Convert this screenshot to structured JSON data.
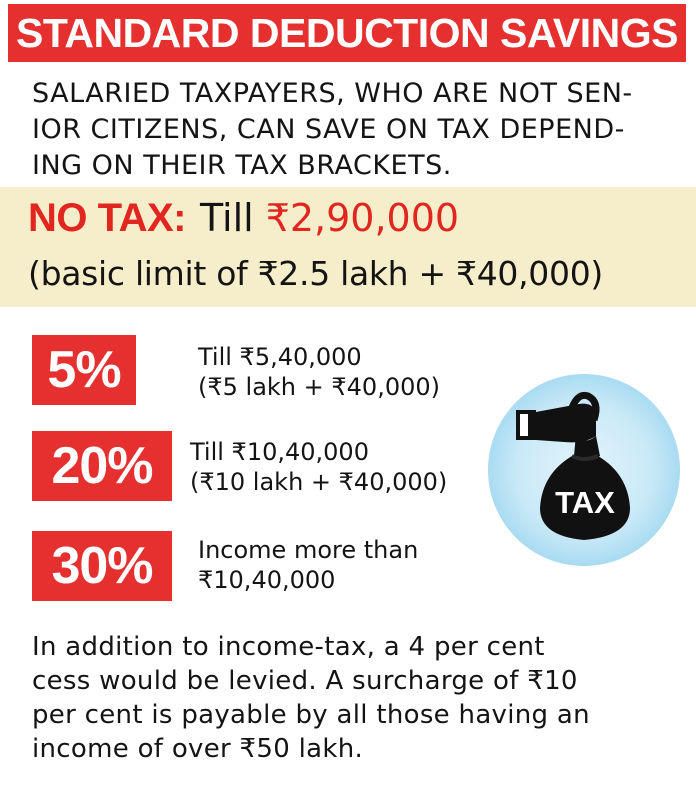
{
  "title": "STANDARD DEDUCTION SAVINGS",
  "intro_lines": [
    "SALARIED TAXPAYERS, WHO ARE NOT SEN-",
    "IOR CITIZENS, CAN SAVE ON TAX DEPEND-",
    "ING ON THEIR TAX BRACKETS."
  ],
  "no_tax": {
    "label": "NO TAX:",
    "till": "Till",
    "amount": "₹2,90,000",
    "detail": "(basic limit of ₹2.5 lakh + ₹40,000)"
  },
  "slabs": [
    {
      "rate": "5%",
      "line1": "Till ₹5,40,000",
      "line2": "(₹5 lakh + ₹40,000)"
    },
    {
      "rate": "20%",
      "line1": "Till ₹10,40,000",
      "line2": "(₹10 lakh + ₹40,000)"
    },
    {
      "rate": "30%",
      "line1": "Income more than",
      "line2": "₹10,40,000"
    }
  ],
  "illustration": {
    "icon": "tax-money-bag-icon",
    "bag_text": "TAX"
  },
  "footer_lines": [
    "In addition to income-tax, a 4 per cent",
    "cess would be levied. A surcharge of ₹10",
    "per cent is payable by all those having an",
    "income of over ₹50 lakh."
  ],
  "colors": {
    "accent_red": "#e5302f",
    "band_cream": "#f6eecb",
    "circle_blue": "#bfe4f5",
    "text": "#141414"
  }
}
